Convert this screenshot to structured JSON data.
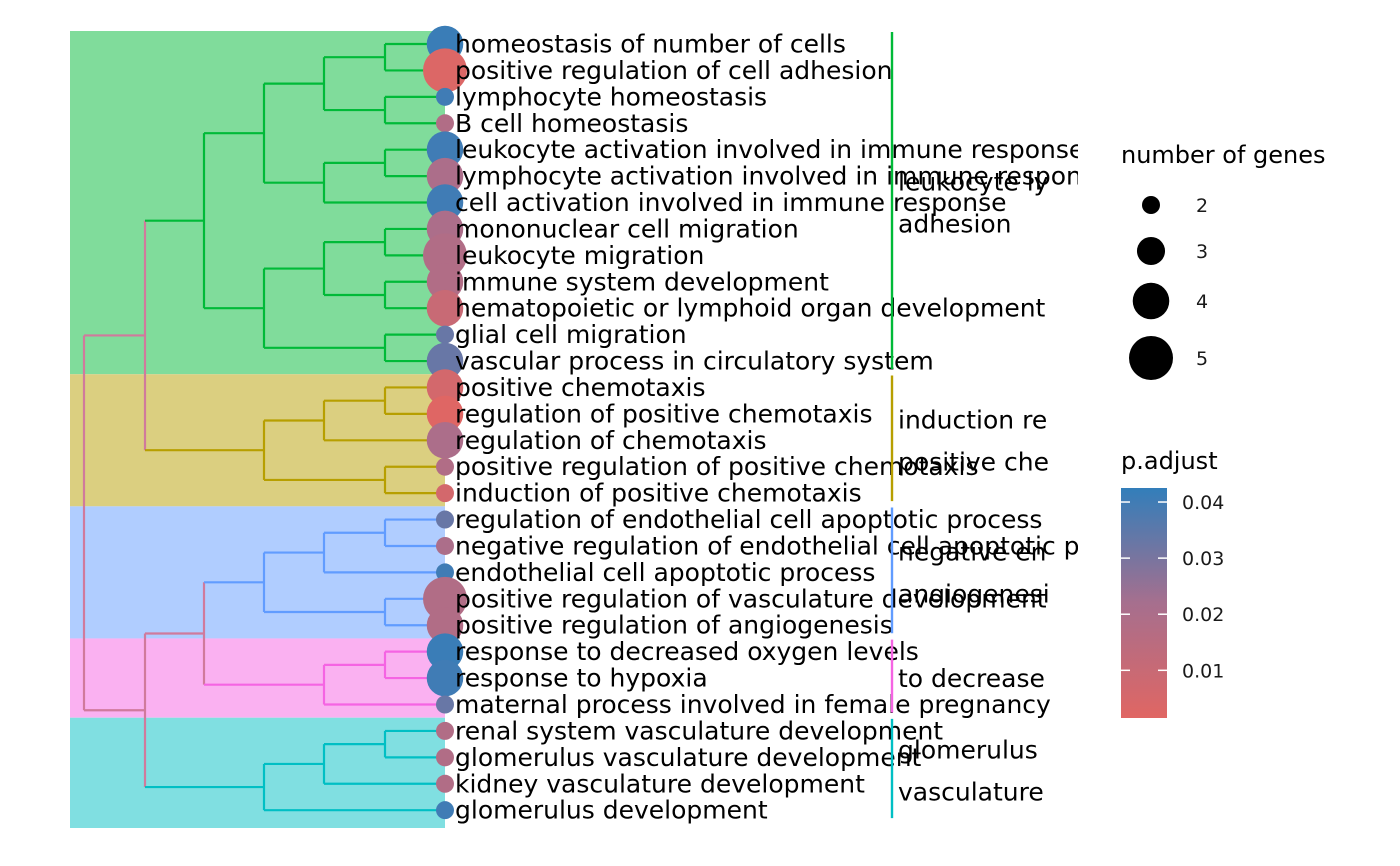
{
  "chart_data": {
    "type": "treeplot",
    "clusters": [
      {
        "label_lines": [
          "leukocyte ly",
          "adhesion"
        ],
        "color": "#00BA38",
        "fill": "#80DC9B",
        "members": [
          0,
          12
        ]
      },
      {
        "label_lines": [
          "induction re",
          "positive che"
        ],
        "color": "#B79F00",
        "fill": "#DBCF80",
        "members": [
          13,
          17
        ]
      },
      {
        "label_lines": [
          "negative en",
          "angiogenesi"
        ],
        "color": "#619CFF",
        "fill": "#B0CDFF",
        "members": [
          18,
          22
        ]
      },
      {
        "label_lines": [
          "to decrease"
        ],
        "color": "#F564E3",
        "fill": "#FAB1F1",
        "members": [
          23,
          25
        ]
      },
      {
        "label_lines": [
          "glomerulus",
          "vasculature"
        ],
        "color": "#00BFC4",
        "fill": "#80DFE1",
        "members": [
          26,
          29
        ]
      }
    ],
    "terms": [
      {
        "label": "homeostasis of number of cells",
        "count": 4,
        "p_adjust": 0.041
      },
      {
        "label": "positive regulation of cell adhesion",
        "count": 5,
        "p_adjust": 0.003
      },
      {
        "label": "lymphocyte homeostasis",
        "count": 2,
        "p_adjust": 0.04
      },
      {
        "label": "B cell homeostasis",
        "count": 2,
        "p_adjust": 0.018
      },
      {
        "label": "leukocyte activation involved in immune response",
        "count": 4,
        "p_adjust": 0.04
      },
      {
        "label": "lymphocyte activation involved in immune response",
        "count": 4,
        "p_adjust": 0.02
      },
      {
        "label": "cell activation involved in immune response",
        "count": 4,
        "p_adjust": 0.04
      },
      {
        "label": "mononuclear cell migration",
        "count": 4,
        "p_adjust": 0.02
      },
      {
        "label": "leukocyte migration",
        "count": 5,
        "p_adjust": 0.018
      },
      {
        "label": "immune system development",
        "count": 4,
        "p_adjust": 0.018
      },
      {
        "label": "hematopoietic or lymphoid organ development",
        "count": 4,
        "p_adjust": 0.01
      },
      {
        "label": "glial cell migration",
        "count": 2,
        "p_adjust": 0.033
      },
      {
        "label": "vascular process in circulatory system",
        "count": 4,
        "p_adjust": 0.033
      },
      {
        "label": "positive chemotaxis",
        "count": 4,
        "p_adjust": 0.006
      },
      {
        "label": "regulation of positive chemotaxis",
        "count": 4,
        "p_adjust": 0.002
      },
      {
        "label": "regulation of chemotaxis",
        "count": 4,
        "p_adjust": 0.02
      },
      {
        "label": "positive regulation of positive chemotaxis",
        "count": 2,
        "p_adjust": 0.018
      },
      {
        "label": "induction of positive chemotaxis",
        "count": 2,
        "p_adjust": 0.006
      },
      {
        "label": "regulation of endothelial cell apoptotic process",
        "count": 2,
        "p_adjust": 0.033
      },
      {
        "label": "negative regulation of endothelial cell apoptotic process",
        "count": 2,
        "p_adjust": 0.02
      },
      {
        "label": "endothelial cell apoptotic process",
        "count": 2,
        "p_adjust": 0.04
      },
      {
        "label": "positive regulation of vasculature development",
        "count": 5,
        "p_adjust": 0.018
      },
      {
        "label": "positive regulation of angiogenesis",
        "count": 4,
        "p_adjust": 0.018
      },
      {
        "label": "response to decreased oxygen levels",
        "count": 4,
        "p_adjust": 0.041
      },
      {
        "label": "response to hypoxia",
        "count": 4,
        "p_adjust": 0.04
      },
      {
        "label": "maternal process involved in female pregnancy",
        "count": 2,
        "p_adjust": 0.033
      },
      {
        "label": "renal system vasculature development",
        "count": 2,
        "p_adjust": 0.018
      },
      {
        "label": "glomerulus vasculature development",
        "count": 2,
        "p_adjust": 0.018
      },
      {
        "label": "kidney vasculature development",
        "count": 2,
        "p_adjust": 0.018
      },
      {
        "label": "glomerulus development",
        "count": 2,
        "p_adjust": 0.04
      }
    ],
    "tree": {
      "levels": [
        0,
        1,
        2,
        3,
        4,
        5,
        6
      ],
      "root": {
        "level": 0,
        "children": [
          {
            "level": 1,
            "children": [
              {
                "level": 2,
                "children": [
                  {
                    "level": 3,
                    "children": [
                      {
                        "level": 4,
                        "children": [
                          {
                            "level": 5,
                            "children": [
                              0,
                              1
                            ]
                          },
                          {
                            "level": 5,
                            "children": [
                              2,
                              3
                            ]
                          }
                        ]
                      },
                      {
                        "level": 4,
                        "children": [
                          {
                            "level": 5,
                            "children": [
                              4,
                              5
                            ]
                          },
                          6
                        ]
                      }
                    ]
                  },
                  {
                    "level": 3,
                    "children": [
                      {
                        "level": 4,
                        "children": [
                          {
                            "level": 5,
                            "children": [
                              7,
                              8
                            ]
                          },
                          {
                            "level": 5,
                            "children": [
                              9,
                              10
                            ]
                          }
                        ]
                      },
                      {
                        "level": 5,
                        "children": [
                          11,
                          12
                        ]
                      }
                    ]
                  }
                ]
              },
              {
                "level": 3,
                "children": [
                  {
                    "level": 4,
                    "children": [
                      {
                        "level": 5,
                        "children": [
                          13,
                          14
                        ]
                      },
                      15
                    ]
                  },
                  {
                    "level": 5,
                    "children": [
                      16,
                      17
                    ]
                  }
                ]
              }
            ]
          },
          {
            "level": 1,
            "children": [
              {
                "level": 2,
                "children": [
                  {
                    "level": 3,
                    "children": [
                      {
                        "level": 4,
                        "children": [
                          {
                            "level": 5,
                            "children": [
                              18,
                              19
                            ]
                          },
                          20
                        ]
                      },
                      {
                        "level": 5,
                        "children": [
                          21,
                          22
                        ]
                      }
                    ]
                  },
                  {
                    "level": 4,
                    "children": [
                      {
                        "level": 5,
                        "children": [
                          23,
                          24
                        ]
                      },
                      25
                    ]
                  }
                ]
              },
              {
                "level": 3,
                "children": [
                  {
                    "level": 4,
                    "children": [
                      {
                        "level": 5,
                        "children": [
                          26,
                          27
                        ]
                      },
                      28
                    ]
                  },
                  29
                ]
              }
            ]
          }
        ]
      }
    },
    "legend_size": {
      "title": "number of genes",
      "values": [
        2,
        3,
        4,
        5
      ],
      "labels": [
        "2",
        "3",
        "4",
        "5"
      ]
    },
    "legend_color": {
      "title": "p.adjust",
      "range": [
        0.0015,
        0.0425
      ],
      "ticks": [
        0.01,
        0.02,
        0.03,
        0.04
      ],
      "tick_labels": [
        "0.01",
        "0.02",
        "0.03",
        "0.04"
      ],
      "low_color": "#E06663",
      "high_color": "#327EBA"
    },
    "size_range_px": [
      9,
      22
    ],
    "size_domain": [
      2,
      5
    ]
  }
}
